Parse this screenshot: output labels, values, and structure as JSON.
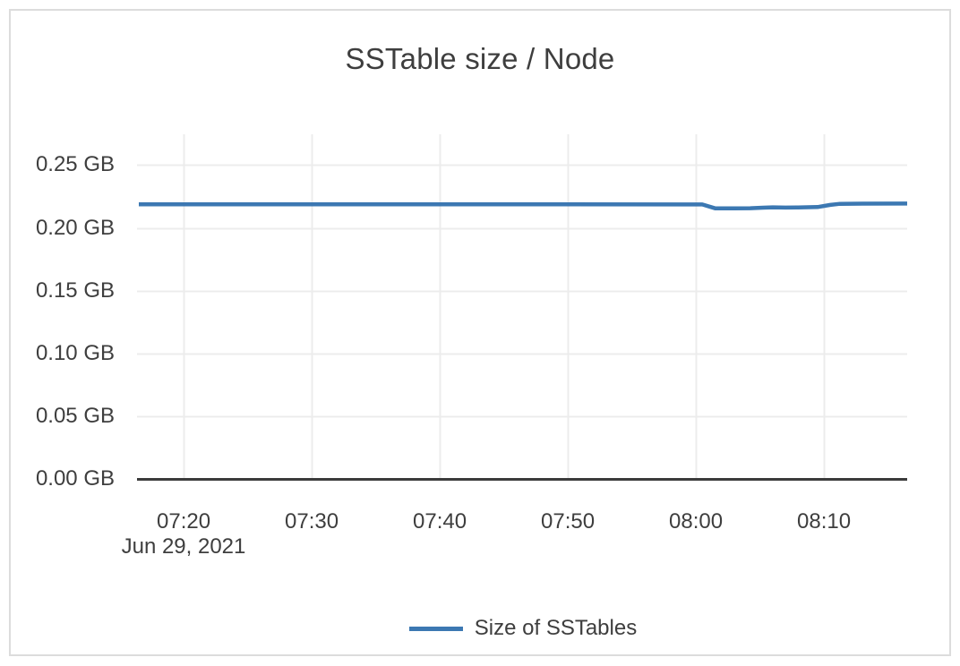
{
  "chart_data": {
    "type": "line",
    "title": "SSTable size / Node",
    "x_axis": {
      "ticks": [
        "07:20",
        "07:30",
        "07:40",
        "07:50",
        "08:00",
        "08:10"
      ],
      "date_label": "Jun 29, 2021",
      "range": [
        "07:16:30",
        "08:16:30"
      ]
    },
    "y_axis": {
      "unit": "GB",
      "range": [
        0,
        0.2746
      ],
      "ticks": [
        {
          "value": 0.0,
          "label": "0.00 GB"
        },
        {
          "value": 0.05,
          "label": "0.05 GB"
        },
        {
          "value": 0.1,
          "label": "0.10 GB"
        },
        {
          "value": 0.15,
          "label": "0.15 GB"
        },
        {
          "value": 0.2,
          "label": "0.20 GB"
        },
        {
          "value": 0.25,
          "label": "0.25 GB"
        }
      ]
    },
    "series": [
      {
        "name": "Size of SSTables",
        "color": "#3c78b2",
        "points": [
          [
            "07:16:30",
            0.2188
          ],
          [
            "07:30:00",
            0.2188
          ],
          [
            "07:45:00",
            0.2188
          ],
          [
            "08:00:30",
            0.2187
          ],
          [
            "08:01:30",
            0.2156
          ],
          [
            "08:03:00",
            0.2156
          ],
          [
            "08:04:15",
            0.2157
          ],
          [
            "08:05:15",
            0.2161
          ],
          [
            "08:06:00",
            0.2164
          ],
          [
            "08:07:00",
            0.2162
          ],
          [
            "08:08:00",
            0.2163
          ],
          [
            "08:09:30",
            0.2166
          ],
          [
            "08:10:30",
            0.2183
          ],
          [
            "08:11:15",
            0.2192
          ],
          [
            "08:13:00",
            0.2193
          ],
          [
            "08:16:30",
            0.2194
          ]
        ]
      }
    ],
    "grid": true,
    "legend_position": "bottom-center"
  },
  "colors": {
    "line": "#3c78b2",
    "grid": "#ececec",
    "axis_line": "#3b3b3b",
    "text": "#3e3e3e",
    "card_border": "#dcdcdc",
    "background": "#ffffff"
  }
}
